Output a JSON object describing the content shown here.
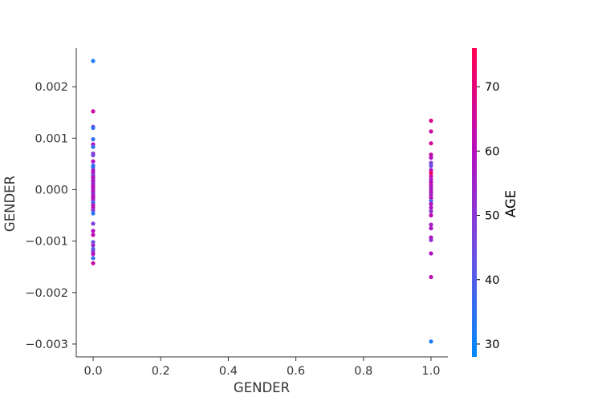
{
  "chart_data": {
    "type": "scatter",
    "title": "",
    "xlabel": "GENDER",
    "ylabel": "GENDER",
    "xlim": [
      -0.05,
      1.05
    ],
    "ylim": [
      -0.00325,
      0.00275
    ],
    "xticks": [
      0.0,
      0.2,
      0.4,
      0.6,
      0.8,
      1.0
    ],
    "xtick_labels": [
      "0.0",
      "0.2",
      "0.4",
      "0.6",
      "0.8",
      "1.0"
    ],
    "yticks": [
      -0.003,
      -0.002,
      -0.001,
      0.0,
      0.001,
      0.002
    ],
    "ytick_labels": [
      "−0.003",
      "−0.002",
      "−0.001",
      "0.000",
      "0.001",
      "0.002"
    ],
    "grid": false,
    "colorbar": {
      "label": "AGE",
      "range": [
        28,
        76
      ],
      "ticks": [
        30,
        40,
        50,
        60,
        70
      ],
      "tick_labels": [
        "30",
        "40",
        "50",
        "60",
        "70"
      ],
      "colors": [
        "#008afb",
        "#6c51e3",
        "#b40fbf",
        "#ff0052"
      ]
    },
    "points": [
      {
        "x": 0,
        "y": 0.0025,
        "age": 32
      },
      {
        "x": 0,
        "y": 0.00152,
        "age": 64
      },
      {
        "x": 0,
        "y": 0.00122,
        "age": 50
      },
      {
        "x": 0,
        "y": 0.0012,
        "age": 35
      },
      {
        "x": 0,
        "y": 0.00098,
        "age": 36
      },
      {
        "x": 0,
        "y": 0.00088,
        "age": 60
      },
      {
        "x": 0,
        "y": 0.00083,
        "age": 36
      },
      {
        "x": 0,
        "y": 0.0007,
        "age": 52
      },
      {
        "x": 0,
        "y": 0.00067,
        "age": 46
      },
      {
        "x": 0,
        "y": 0.00055,
        "age": 60
      },
      {
        "x": 0,
        "y": 0.00047,
        "age": 36
      },
      {
        "x": 0,
        "y": 0.00044,
        "age": 35
      },
      {
        "x": 0,
        "y": 0.00038,
        "age": 56
      },
      {
        "x": 0,
        "y": 0.00033,
        "age": 60
      },
      {
        "x": 0,
        "y": 0.00028,
        "age": 48
      },
      {
        "x": 0,
        "y": 0.00024,
        "age": 62
      },
      {
        "x": 0,
        "y": 0.0002,
        "age": 56
      },
      {
        "x": 0,
        "y": 0.00016,
        "age": 60
      },
      {
        "x": 0,
        "y": 0.00012,
        "age": 52
      },
      {
        "x": 0,
        "y": 8e-05,
        "age": 58
      },
      {
        "x": 0,
        "y": 4e-05,
        "age": 62
      },
      {
        "x": 0,
        "y": 0.0,
        "age": 55
      },
      {
        "x": 0,
        "y": -4e-05,
        "age": 60
      },
      {
        "x": 0,
        "y": -8e-05,
        "age": 52
      },
      {
        "x": 0,
        "y": -0.00012,
        "age": 58
      },
      {
        "x": 0,
        "y": -0.00016,
        "age": 62
      },
      {
        "x": 0,
        "y": -0.0002,
        "age": 56
      },
      {
        "x": 0,
        "y": -0.00025,
        "age": 38
      },
      {
        "x": 0,
        "y": -0.0003,
        "age": 58
      },
      {
        "x": 0,
        "y": -0.00035,
        "age": 62
      },
      {
        "x": 0,
        "y": -0.0004,
        "age": 50
      },
      {
        "x": 0,
        "y": -0.00046,
        "age": 34
      },
      {
        "x": 0,
        "y": -0.00066,
        "age": 48
      },
      {
        "x": 0,
        "y": -0.0008,
        "age": 60
      },
      {
        "x": 0,
        "y": -0.00088,
        "age": 62
      },
      {
        "x": 0,
        "y": -0.00102,
        "age": 44
      },
      {
        "x": 0,
        "y": -0.00108,
        "age": 56
      },
      {
        "x": 0,
        "y": -0.00115,
        "age": 40
      },
      {
        "x": 0,
        "y": -0.0012,
        "age": 50
      },
      {
        "x": 0,
        "y": -0.00125,
        "age": 60
      },
      {
        "x": 0,
        "y": -0.00133,
        "age": 36
      },
      {
        "x": 0,
        "y": -0.00143,
        "age": 64
      },
      {
        "x": 1,
        "y": 0.00134,
        "age": 68
      },
      {
        "x": 1,
        "y": 0.00113,
        "age": 64
      },
      {
        "x": 1,
        "y": 0.0009,
        "age": 66
      },
      {
        "x": 1,
        "y": 0.00068,
        "age": 64
      },
      {
        "x": 1,
        "y": 0.00062,
        "age": 60
      },
      {
        "x": 1,
        "y": 0.00052,
        "age": 48
      },
      {
        "x": 1,
        "y": 0.00046,
        "age": 44
      },
      {
        "x": 1,
        "y": 0.00038,
        "age": 58
      },
      {
        "x": 1,
        "y": 0.00032,
        "age": 74
      },
      {
        "x": 1,
        "y": 0.00026,
        "age": 64
      },
      {
        "x": 1,
        "y": 0.0002,
        "age": 56
      },
      {
        "x": 1,
        "y": 0.00015,
        "age": 60
      },
      {
        "x": 1,
        "y": 0.0001,
        "age": 62
      },
      {
        "x": 1,
        "y": 5e-05,
        "age": 58
      },
      {
        "x": 1,
        "y": 0.0,
        "age": 56
      },
      {
        "x": 1,
        "y": -5e-05,
        "age": 60
      },
      {
        "x": 1,
        "y": -0.0001,
        "age": 56
      },
      {
        "x": 1,
        "y": -0.00016,
        "age": 62
      },
      {
        "x": 1,
        "y": -0.00022,
        "age": 38
      },
      {
        "x": 1,
        "y": -0.00028,
        "age": 60
      },
      {
        "x": 1,
        "y": -0.00035,
        "age": 58
      },
      {
        "x": 1,
        "y": -0.00042,
        "age": 52
      },
      {
        "x": 1,
        "y": -0.0005,
        "age": 62
      },
      {
        "x": 1,
        "y": -0.00068,
        "age": 56
      },
      {
        "x": 1,
        "y": -0.00075,
        "age": 58
      },
      {
        "x": 1,
        "y": -0.00093,
        "age": 60
      },
      {
        "x": 1,
        "y": -0.00098,
        "age": 52
      },
      {
        "x": 1,
        "y": -0.00124,
        "age": 60
      },
      {
        "x": 1,
        "y": -0.0017,
        "age": 62
      },
      {
        "x": 1,
        "y": -0.00295,
        "age": 32
      }
    ]
  }
}
